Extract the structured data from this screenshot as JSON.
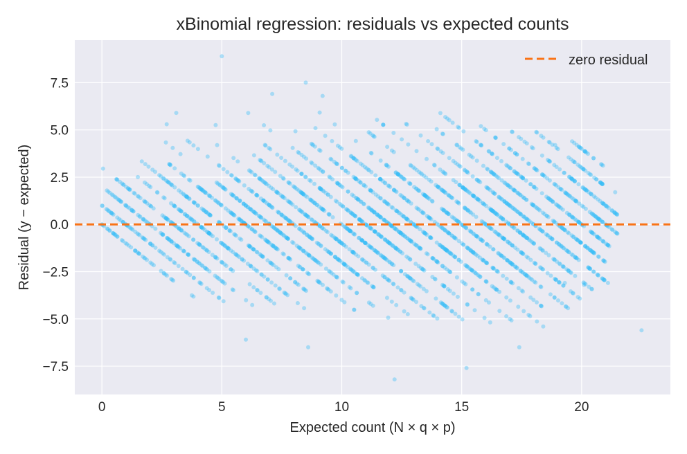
{
  "chart_data": {
    "type": "scatter",
    "title": "xBinomial regression: residuals vs expected counts",
    "xlabel": "Expected count (N × q × p)",
    "ylabel": "Residual (y − expected)",
    "xlim": [
      -1.13,
      23.7
    ],
    "ylim": [
      -9.0,
      9.75
    ],
    "xticks": [
      0,
      5,
      10,
      15,
      20
    ],
    "xtick_labels": [
      "0",
      "5",
      "10",
      "15",
      "20"
    ],
    "yticks": [
      -7.5,
      -5.0,
      -2.5,
      0.0,
      2.5,
      5.0,
      7.5
    ],
    "ytick_labels": [
      "−7.5",
      "−5.0",
      "−2.5",
      "0.0",
      "2.5",
      "5.0",
      "7.5"
    ],
    "grid": true,
    "background": "#eaeaf2",
    "point_color": "#38bdf8",
    "reference_line": {
      "y": 0,
      "label": "zero residual",
      "color": "#f97316",
      "style": "dashed"
    },
    "legend": {
      "position": "top-right",
      "entries": [
        "zero residual"
      ]
    },
    "observed_count_bands": [
      {
        "observed": 0,
        "expected_range": [
          0,
          4.2
        ]
      },
      {
        "observed": 1,
        "expected_range": [
          0,
          5.1
        ]
      },
      {
        "observed": 2,
        "expected_range": [
          0,
          6.3
        ]
      },
      {
        "observed": 3,
        "expected_range": [
          0,
          7.4
        ]
      },
      {
        "observed": 4,
        "expected_range": [
          0.4,
          8.6
        ]
      },
      {
        "observed": 5,
        "expected_range": [
          1.0,
          9.7
        ]
      },
      {
        "observed": 6,
        "expected_range": [
          1.4,
          10.8
        ]
      },
      {
        "observed": 7,
        "expected_range": [
          2.0,
          12.0
        ]
      },
      {
        "observed": 8,
        "expected_range": [
          2.7,
          13.1
        ]
      },
      {
        "observed": 9,
        "expected_range": [
          3.4,
          14.2
        ]
      },
      {
        "observed": 10,
        "expected_range": [
          4.2,
          15.3
        ]
      },
      {
        "observed": 11,
        "expected_range": [
          5.0,
          16.4
        ]
      },
      {
        "observed": 12,
        "expected_range": [
          5.9,
          17.5
        ]
      },
      {
        "observed": 13,
        "expected_range": [
          6.8,
          18.3
        ]
      },
      {
        "observed": 14,
        "expected_range": [
          7.8,
          19.0
        ]
      },
      {
        "observed": 15,
        "expected_range": [
          8.8,
          19.5
        ]
      },
      {
        "observed": 16,
        "expected_range": [
          9.8,
          20.0
        ]
      },
      {
        "observed": 17,
        "expected_range": [
          10.8,
          20.5
        ]
      },
      {
        "observed": 18,
        "expected_range": [
          11.8,
          21.0
        ]
      },
      {
        "observed": 19,
        "expected_range": [
          13.0,
          21.0
        ]
      },
      {
        "observed": 20,
        "expected_range": [
          14.0,
          21.2
        ]
      },
      {
        "observed": 21,
        "expected_range": [
          15.0,
          21.5
        ]
      },
      {
        "observed": 22,
        "expected_range": [
          16.5,
          21.5
        ]
      },
      {
        "observed": 23,
        "expected_range": [
          18.0,
          21.0
        ]
      },
      {
        "observed": 24,
        "expected_range": [
          19.5,
          21.0
        ]
      }
    ],
    "outlier_points": [
      [
        5.0,
        8.9
      ],
      [
        8.5,
        7.5
      ],
      [
        7.1,
        6.9
      ],
      [
        9.2,
        6.8
      ],
      [
        3.1,
        5.9
      ],
      [
        2.7,
        5.3
      ],
      [
        12.2,
        -8.2
      ],
      [
        15.2,
        -7.6
      ],
      [
        22.5,
        -5.6
      ],
      [
        18.4,
        -5.4
      ],
      [
        17.4,
        -6.5
      ],
      [
        8.6,
        -6.5
      ],
      [
        6.0,
        -6.1
      ],
      [
        21.1,
        -3.1
      ],
      [
        20.1,
        -3.2
      ],
      [
        19.3,
        -3.1
      ],
      [
        20.0,
        4.0
      ],
      [
        19.7,
        3.3
      ],
      [
        18.9,
        4.2
      ],
      [
        21.4,
        1.7
      ],
      [
        20.8,
        2.2
      ]
    ]
  }
}
